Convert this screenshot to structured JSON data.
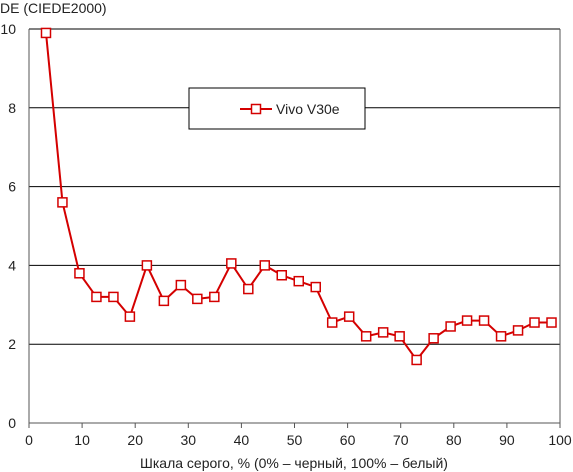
{
  "chart_data": {
    "type": "line",
    "title": "",
    "ylabel": "DE (CIEDE2000)",
    "xlabel": "Шкала серого, % (0% – черный, 100% – белый)",
    "xlim": [
      0,
      100
    ],
    "ylim": [
      0,
      10
    ],
    "x_ticks": [
      0,
      10,
      20,
      30,
      40,
      50,
      60,
      70,
      80,
      90,
      100
    ],
    "y_ticks": [
      0,
      2,
      4,
      6,
      8,
      10
    ],
    "x_tick_labels": [
      "0",
      "10",
      "20",
      "30",
      "40",
      "50",
      "60",
      "70",
      "80",
      "90",
      "100"
    ],
    "y_tick_labels": [
      "0",
      "2",
      "4",
      "6",
      "8",
      "10"
    ],
    "grid": "horizontal",
    "legend": "top-center",
    "colors": {
      "series": "#d40000",
      "grid": "#000000",
      "axis": "#555555",
      "marker_fill": "#ffffff"
    },
    "series": [
      {
        "name": "Vivo V30e",
        "marker": "open-square",
        "x": [
          3.2,
          6.3,
          9.5,
          12.7,
          15.9,
          19.0,
          22.2,
          25.4,
          28.6,
          31.7,
          34.9,
          38.1,
          41.3,
          44.4,
          47.6,
          50.8,
          54.0,
          57.1,
          60.3,
          63.5,
          66.7,
          69.8,
          73.0,
          76.2,
          79.4,
          82.5,
          85.7,
          88.9,
          92.1,
          95.2,
          98.4
        ],
        "values": [
          9.9,
          5.6,
          3.8,
          3.2,
          3.2,
          2.7,
          4.0,
          3.1,
          3.5,
          3.15,
          3.2,
          4.05,
          3.4,
          4.0,
          3.75,
          3.6,
          3.45,
          2.55,
          2.7,
          2.2,
          2.3,
          2.2,
          1.6,
          2.15,
          2.45,
          2.6,
          2.6,
          2.2,
          2.35,
          2.55,
          2.55
        ]
      }
    ]
  }
}
